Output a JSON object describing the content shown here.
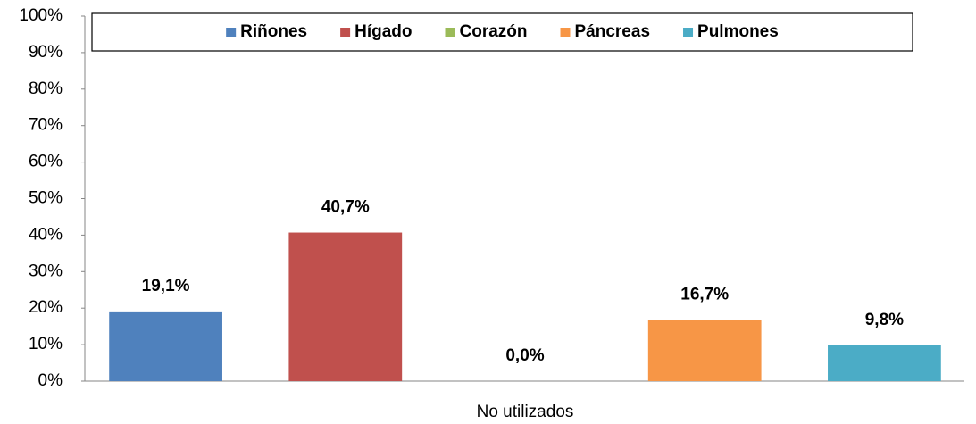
{
  "chart_data": {
    "type": "bar",
    "categories": [
      "No utilizados"
    ],
    "series": [
      {
        "name": "Riñones",
        "color": "#4f81bd",
        "values": [
          19.1
        ],
        "value_labels": [
          "19,1%"
        ]
      },
      {
        "name": "Hígado",
        "color": "#c0504d",
        "values": [
          40.7
        ],
        "value_labels": [
          "40,7%"
        ]
      },
      {
        "name": "Corazón",
        "color": "#9bbb59",
        "values": [
          0.0
        ],
        "value_labels": [
          "0,0%"
        ]
      },
      {
        "name": "Páncreas",
        "color": "#f79646",
        "values": [
          16.7
        ],
        "value_labels": [
          "16,7%"
        ]
      },
      {
        "name": "Pulmones",
        "color": "#4bacc6",
        "values": [
          9.8
        ],
        "value_labels": [
          "9,8%"
        ]
      }
    ],
    "ylim": [
      0,
      100
    ],
    "yticks": [
      {
        "value": 0,
        "label": "0%"
      },
      {
        "value": 10,
        "label": "10%"
      },
      {
        "value": 20,
        "label": "20%"
      },
      {
        "value": 30,
        "label": "30%"
      },
      {
        "value": 40,
        "label": "40%"
      },
      {
        "value": 50,
        "label": "50%"
      },
      {
        "value": 60,
        "label": "60%"
      },
      {
        "value": 70,
        "label": "70%"
      },
      {
        "value": 80,
        "label": "80%"
      },
      {
        "value": 90,
        "label": "90%"
      },
      {
        "value": 100,
        "label": "100%"
      }
    ],
    "grid": false,
    "legend": "top"
  }
}
